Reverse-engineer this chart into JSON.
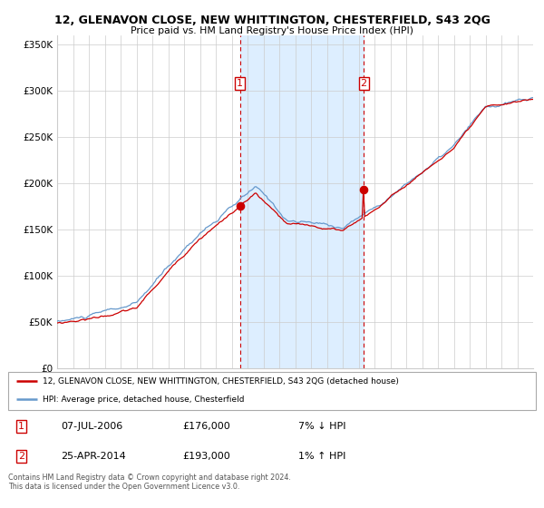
{
  "title": "12, GLENAVON CLOSE, NEW WHITTINGTON, CHESTERFIELD, S43 2QG",
  "subtitle": "Price paid vs. HM Land Registry's House Price Index (HPI)",
  "sale1_date": "07-JUL-2006",
  "sale1_price": 176000,
  "sale1_year": 2006.52,
  "sale2_date": "25-APR-2014",
  "sale2_price": 193000,
  "sale2_year": 2014.32,
  "legend_line1": "12, GLENAVON CLOSE, NEW WHITTINGTON, CHESTERFIELD, S43 2QG (detached house)",
  "legend_line2": "HPI: Average price, detached house, Chesterfield",
  "ylabel_ticks": [
    "£0",
    "£50K",
    "£100K",
    "£150K",
    "£200K",
    "£250K",
    "£300K",
    "£350K"
  ],
  "ytick_vals": [
    0,
    50000,
    100000,
    150000,
    200000,
    250000,
    300000,
    350000
  ],
  "xmin": 1995,
  "xmax": 2025,
  "ymin": 0,
  "ymax": 360000,
  "shade_start": 2006.52,
  "shade_end": 2014.32,
  "line_color_red": "#cc0000",
  "line_color_blue": "#6699cc",
  "dot_color": "#cc0000",
  "shade_color": "#ddeeff",
  "grid_color": "#cccccc",
  "bg_color": "#ffffff",
  "footnote": "Contains HM Land Registry data © Crown copyright and database right 2024.\nThis data is licensed under the Open Government Licence v3.0."
}
